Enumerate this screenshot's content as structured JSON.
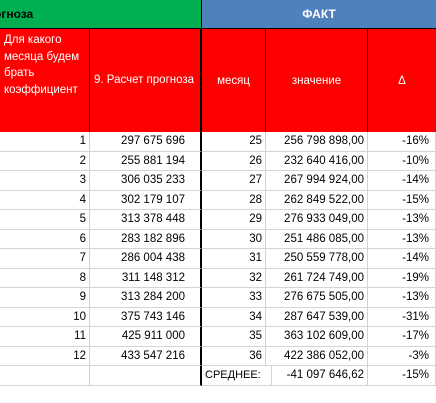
{
  "header": {
    "left_title": "огноза",
    "right_title": "ФАКТ"
  },
  "subheader": {
    "col1": "Для какого месяца будем брать коэффициент",
    "col2": "9. Расчет прогноза",
    "col3": "месяц",
    "col4": "значение",
    "col5": "Δ"
  },
  "rows": [
    {
      "n": "1",
      "forecast": "297 675 696",
      "month": "25",
      "value": "256 798 898,00",
      "delta": "-16%"
    },
    {
      "n": "2",
      "forecast": "255 881 194",
      "month": "26",
      "value": "232 640 416,00",
      "delta": "-10%"
    },
    {
      "n": "3",
      "forecast": "306 035 233",
      "month": "27",
      "value": "267 994 924,00",
      "delta": "-14%"
    },
    {
      "n": "4",
      "forecast": "302 179 107",
      "month": "28",
      "value": "262 849 522,00",
      "delta": "-15%"
    },
    {
      "n": "5",
      "forecast": "313 378 448",
      "month": "29",
      "value": "276 933 049,00",
      "delta": "-13%"
    },
    {
      "n": "6",
      "forecast": "283 182 896",
      "month": "30",
      "value": "251 486 085,00",
      "delta": "-13%"
    },
    {
      "n": "7",
      "forecast": "286 004 438",
      "month": "31",
      "value": "250 559 778,00",
      "delta": "-14%"
    },
    {
      "n": "8",
      "forecast": "311 148 312",
      "month": "32",
      "value": "261 724 749,00",
      "delta": "-19%"
    },
    {
      "n": "9",
      "forecast": "313 284 200",
      "month": "33",
      "value": "276 675 505,00",
      "delta": "-13%"
    },
    {
      "n": "10",
      "forecast": "375 743 146",
      "month": "34",
      "value": "287 647 539,00",
      "delta": "-31%"
    },
    {
      "n": "11",
      "forecast": "425 911 000",
      "month": "35",
      "value": "363 102 609,00",
      "delta": "-17%"
    },
    {
      "n": "12",
      "forecast": "433 547 216",
      "month": "36",
      "value": "422 386 052,00",
      "delta": "-3%"
    }
  ],
  "average": {
    "label": "СРЕДНЕЕ:",
    "value": "-41 097 646,62",
    "delta": "-15%"
  }
}
